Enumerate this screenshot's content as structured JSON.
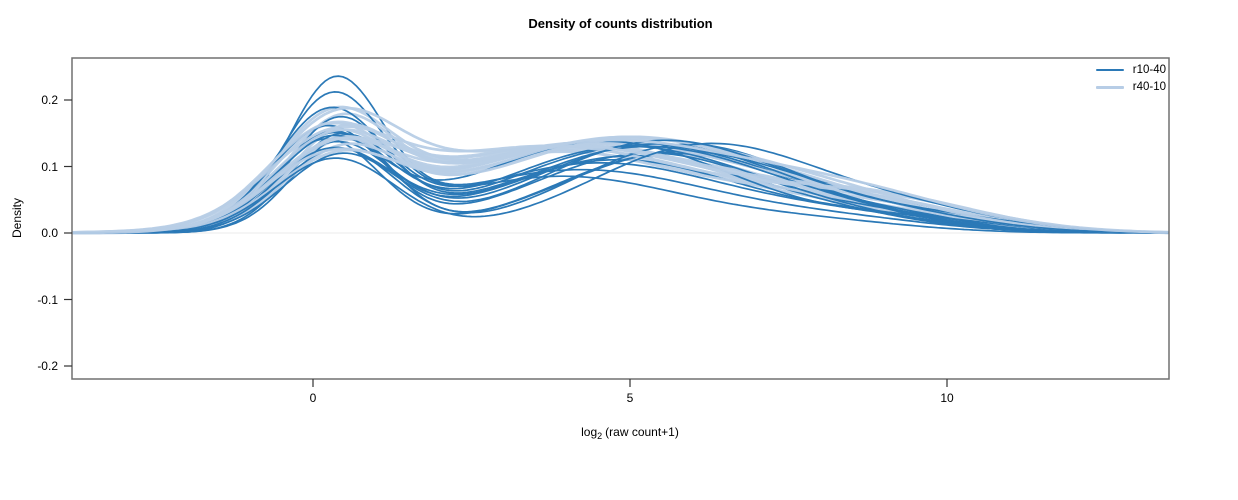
{
  "chart_data": {
    "type": "line",
    "subtype": "density-curves",
    "title": "Density of counts distribution",
    "xlabel": "log2 (raw count+1)",
    "xlabel_prefix": "log",
    "xlabel_sub": "2",
    "xlabel_suffix": "(raw count+1)",
    "ylabel": "Density",
    "x_ticks": [
      "0",
      "5",
      "10"
    ],
    "x_tick_values": [
      0,
      5,
      10
    ],
    "y_ticks": [
      "0.2",
      "0.1",
      "0.0",
      "-0.1",
      "-0.2"
    ],
    "y_tick_values": [
      0.2,
      0.1,
      0.0,
      -0.1,
      -0.2
    ],
    "xlim": [
      -3.8,
      13.5
    ],
    "ylim": [
      -0.22,
      0.26
    ],
    "grid": false,
    "zero_line_color": "#ebebeb",
    "box_color": "#707070",
    "tick_color": "#333333",
    "legend_position": "top-right",
    "legend": [
      {
        "label": "r10-40",
        "color": "#2b79b7"
      },
      {
        "label": "r40-10",
        "color": "#b7cde6"
      }
    ],
    "series_groups": [
      {
        "name": "r10-40",
        "color": "#2b79b7",
        "line_width": 1.7,
        "curves": [
          {
            "components": [
              [
                0.215,
                0.35,
                0.75
              ],
              [
                0.095,
                4.2,
                2.2
              ],
              [
                0.015,
                8.5,
                1.5
              ]
            ]
          },
          {
            "components": [
              [
                0.195,
                0.3,
                0.8
              ],
              [
                0.085,
                3.9,
                2.0
              ],
              [
                0.015,
                8.0,
                1.5
              ]
            ]
          },
          {
            "components": [
              [
                0.175,
                0.25,
                0.85
              ],
              [
                0.105,
                4.5,
                2.1
              ],
              [
                0.02,
                8.6,
                1.5
              ]
            ]
          },
          {
            "components": [
              [
                0.165,
                0.4,
                0.8
              ],
              [
                0.11,
                4.8,
                2.0
              ],
              [
                0.02,
                9.0,
                1.4
              ]
            ]
          },
          {
            "components": [
              [
                0.155,
                0.2,
                0.88
              ],
              [
                0.115,
                5.0,
                2.0
              ],
              [
                0.015,
                8.4,
                1.5
              ]
            ]
          },
          {
            "components": [
              [
                0.15,
                0.3,
                0.85
              ],
              [
                0.12,
                5.3,
                1.9
              ],
              [
                0.02,
                9.2,
                1.3
              ]
            ]
          },
          {
            "components": [
              [
                0.148,
                0.45,
                0.8
              ],
              [
                0.118,
                5.6,
                1.8
              ],
              [
                0.022,
                9.0,
                1.5
              ]
            ]
          },
          {
            "components": [
              [
                0.142,
                0.3,
                0.9
              ],
              [
                0.128,
                4.9,
                2.0
              ],
              [
                0.018,
                8.2,
                1.6
              ]
            ]
          },
          {
            "components": [
              [
                0.14,
                0.2,
                0.85
              ],
              [
                0.122,
                5.8,
                1.9
              ],
              [
                0.026,
                9.4,
                1.4
              ]
            ]
          },
          {
            "components": [
              [
                0.136,
                0.5,
                0.8
              ],
              [
                0.128,
                5.1,
                2.1
              ],
              [
                0.018,
                8.0,
                1.7
              ]
            ]
          },
          {
            "components": [
              [
                0.132,
                0.35,
                0.9
              ],
              [
                0.133,
                5.4,
                2.0
              ],
              [
                0.014,
                8.8,
                1.5
              ]
            ]
          },
          {
            "components": [
              [
                0.13,
                0.25,
                0.85
              ],
              [
                0.138,
                4.6,
                2.1
              ],
              [
                0.018,
                9.6,
                1.3
              ]
            ]
          },
          {
            "components": [
              [
                0.126,
                0.4,
                0.9
              ],
              [
                0.133,
                5.9,
                1.8
              ],
              [
                0.022,
                9.8,
                1.4
              ]
            ]
          },
          {
            "components": [
              [
                0.122,
                0.3,
                0.95
              ],
              [
                0.128,
                5.2,
                2.0
              ],
              [
                0.018,
                8.6,
                1.6
              ]
            ]
          },
          {
            "components": [
              [
                0.116,
                0.45,
                0.9
              ],
              [
                0.138,
                5.5,
                1.9
              ],
              [
                0.024,
                9.1,
                1.5
              ]
            ]
          },
          {
            "components": [
              [
                0.112,
                0.35,
                0.95
              ],
              [
                0.132,
                6.2,
                1.8
              ],
              [
                0.028,
                9.5,
                1.5
              ]
            ]
          }
        ]
      },
      {
        "name": "r40-10",
        "color": "#b7cde6",
        "line_width": 2.7,
        "curves": [
          {
            "components": [
              [
                0.15,
                0.3,
                0.9
              ],
              [
                0.12,
                3.8,
                2.3
              ],
              [
                0.03,
                8.0,
                1.8
              ]
            ]
          },
          {
            "components": [
              [
                0.145,
                0.4,
                0.85
              ],
              [
                0.125,
                4.0,
                2.2
              ],
              [
                0.035,
                8.3,
                1.7
              ]
            ]
          },
          {
            "components": [
              [
                0.14,
                0.25,
                0.9
              ],
              [
                0.13,
                4.3,
                2.2
              ],
              [
                0.03,
                7.8,
                1.9
              ]
            ]
          },
          {
            "components": [
              [
                0.135,
                0.35,
                0.95
              ],
              [
                0.125,
                3.6,
                2.4
              ],
              [
                0.04,
                8.5,
                1.7
              ]
            ]
          },
          {
            "components": [
              [
                0.13,
                0.3,
                0.9
              ],
              [
                0.13,
                4.5,
                2.3
              ],
              [
                0.035,
                8.1,
                1.8
              ]
            ]
          },
          {
            "components": [
              [
                0.13,
                0.45,
                0.85
              ],
              [
                0.135,
                4.2,
                2.2
              ],
              [
                0.03,
                8.7,
                1.6
              ]
            ]
          },
          {
            "components": [
              [
                0.125,
                0.2,
                0.95
              ],
              [
                0.13,
                3.9,
                2.4
              ],
              [
                0.04,
                8.2,
                1.8
              ]
            ]
          },
          {
            "components": [
              [
                0.12,
                0.4,
                0.9
              ],
              [
                0.135,
                4.7,
                2.2
              ],
              [
                0.035,
                7.9,
                1.9
              ]
            ]
          },
          {
            "components": [
              [
                0.12,
                0.3,
                0.95
              ],
              [
                0.13,
                4.1,
                2.3
              ],
              [
                0.04,
                8.8,
                1.7
              ]
            ]
          },
          {
            "components": [
              [
                0.115,
                0.35,
                0.9
              ],
              [
                0.135,
                4.4,
                2.3
              ],
              [
                0.035,
                8.4,
                1.8
              ]
            ]
          },
          {
            "components": [
              [
                0.11,
                0.25,
                1.0
              ],
              [
                0.13,
                3.7,
                2.4
              ],
              [
                0.045,
                8.6,
                1.7
              ]
            ]
          },
          {
            "components": [
              [
                0.11,
                0.45,
                0.9
              ],
              [
                0.135,
                4.6,
                2.2
              ],
              [
                0.04,
                8.0,
                1.9
              ]
            ]
          },
          {
            "components": [
              [
                0.105,
                0.3,
                0.95
              ],
              [
                0.13,
                4.2,
                2.4
              ],
              [
                0.045,
                9.0,
                1.6
              ]
            ]
          },
          {
            "components": [
              [
                0.105,
                0.4,
                1.0
              ],
              [
                0.135,
                4.8,
                2.2
              ],
              [
                0.04,
                8.3,
                1.8
              ]
            ]
          },
          {
            "components": [
              [
                0.1,
                0.35,
                0.95
              ],
              [
                0.13,
                4.0,
                2.4
              ],
              [
                0.045,
                8.9,
                1.7
              ]
            ]
          },
          {
            "components": [
              [
                0.1,
                0.25,
                1.0
              ],
              [
                0.135,
                4.5,
                2.3
              ],
              [
                0.05,
                8.5,
                1.8
              ]
            ]
          }
        ]
      }
    ]
  }
}
